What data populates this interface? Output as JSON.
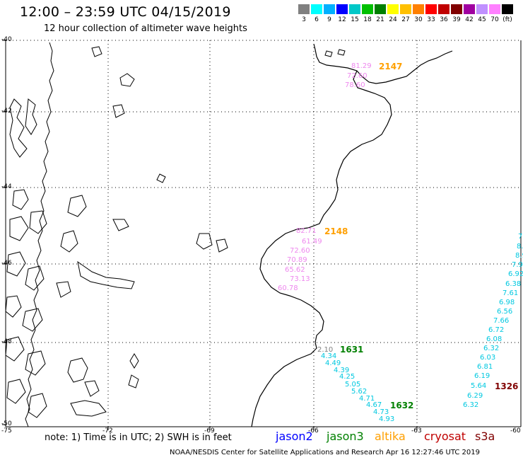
{
  "header": {
    "title": "12:00 – 23:59 UTC 04/15/2019",
    "subtitle": "12 hour collection of altimeter wave heights"
  },
  "legend": {
    "colors": [
      "#808080",
      "#00ffff",
      "#00b0ff",
      "#0000ff",
      "#00c8c8",
      "#00c000",
      "#008000",
      "#ffff00",
      "#ffc000",
      "#ff8000",
      "#ff0000",
      "#c00000",
      "#800000",
      "#a000a0",
      "#c090ff",
      "#ff80ff",
      "#000000"
    ],
    "labels": [
      "3",
      "6",
      "9",
      "12",
      "15",
      "18",
      "21",
      "24",
      "27",
      "30",
      "33",
      "36",
      "39",
      "42",
      "45",
      "70",
      "(ft)"
    ]
  },
  "axes": {
    "lat_labels": [
      "-40",
      "-42",
      "-44",
      "-46",
      "-48",
      "-50"
    ],
    "lon_labels": [
      "-75",
      "-72",
      "-69",
      "-66",
      "-63",
      "-60"
    ]
  },
  "footer": {
    "note": "note: 1) Time is in UTC; 2) SWH is in feet",
    "credit": "NOAA/NESDIS Center for Satellite Applications and Research    Apr 16 12:27:46 UTC 2019",
    "satellites": [
      {
        "name": "jason2",
        "color": "#0000ff"
      },
      {
        "name": "jason3",
        "color": "#008000"
      },
      {
        "name": "altika",
        "color": "#ffa000"
      },
      {
        "name": "cryosat",
        "color": "#c00000"
      },
      {
        "name": "s3a",
        "color": "#800000"
      }
    ]
  },
  "passes": [
    {
      "label": "2147",
      "color": "#ffa000",
      "values": [
        "81.29",
        "72.60",
        "78.60"
      ],
      "value_color": "#ee88ee"
    },
    {
      "label": "2148",
      "color": "#ffa000",
      "values": [
        "82.71",
        "61.49",
        "72.60",
        "70.89",
        "65.62",
        "73.13",
        "60.78"
      ],
      "value_color": "#ee88ee"
    },
    {
      "label": "1631",
      "color": "#008000",
      "values": [
        "2.10",
        "4.34",
        "4.49",
        "4.39",
        "4.25",
        "5.05",
        "5.62",
        "4.71",
        "4.67",
        "4.73",
        "4.93"
      ],
      "value_color": "#00c8e0"
    },
    {
      "label": "1632",
      "color": "#008000",
      "values": []
    },
    {
      "label": "1326",
      "color": "#800000",
      "values": [
        "7.",
        "8.",
        "8.9",
        "7.92",
        "6.92",
        "6.38",
        "7.61",
        "6.98",
        "6.56",
        "7.66",
        "6.72",
        "6.08",
        "6.32",
        "6.03",
        "6.81",
        "6.19",
        "5.64",
        "6.29",
        "6.32"
      ],
      "value_color": "#00c8e0"
    }
  ]
}
